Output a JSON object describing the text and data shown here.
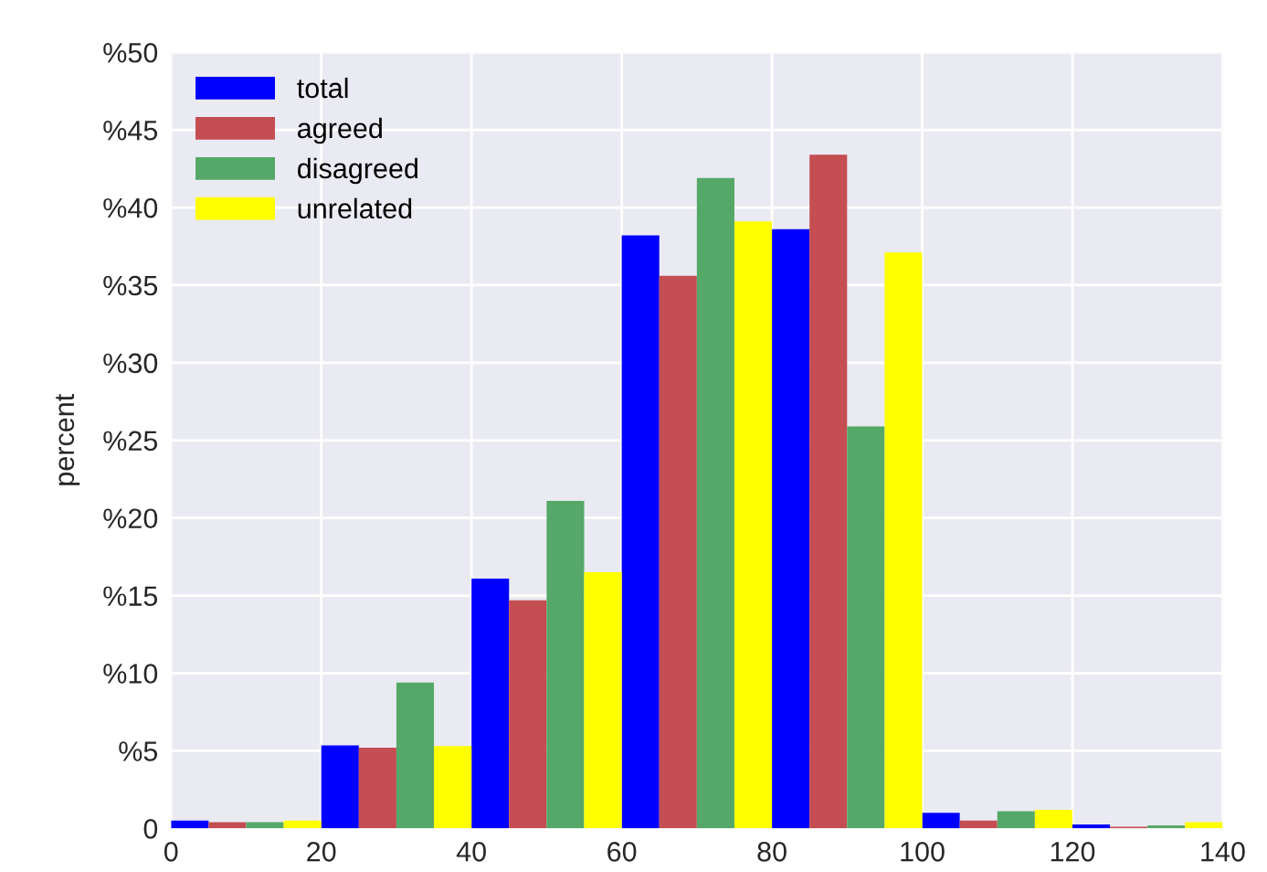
{
  "chart_data": {
    "type": "histogram",
    "ylabel": "percent",
    "bins": [
      0,
      20,
      40,
      60,
      80,
      100,
      120,
      140
    ],
    "series": [
      {
        "name": "total",
        "color": "#0000ff",
        "values": [
          0.5,
          5.35,
          16.1,
          38.2,
          38.6,
          1.0,
          0.25
        ]
      },
      {
        "name": "agreed",
        "color": "#c44e52",
        "values": [
          0.4,
          5.2,
          14.7,
          35.6,
          43.4,
          0.5,
          0.1
        ]
      },
      {
        "name": "disagreed",
        "color": "#55a868",
        "values": [
          0.4,
          9.4,
          21.1,
          41.9,
          25.9,
          1.1,
          0.2
        ]
      },
      {
        "name": "unrelated",
        "color": "#ffff00",
        "values": [
          0.5,
          5.3,
          16.5,
          39.1,
          37.1,
          1.2,
          0.4
        ]
      }
    ],
    "xlim": [
      0,
      140
    ],
    "xticks": [
      0,
      20,
      40,
      60,
      80,
      100,
      120,
      140
    ],
    "ylim": [
      0,
      50
    ],
    "yticks": [
      {
        "value": 0,
        "label": "0"
      },
      {
        "value": 5,
        "label": "%5"
      },
      {
        "value": 10,
        "label": "%10"
      },
      {
        "value": 15,
        "label": "%15"
      },
      {
        "value": 20,
        "label": "%20"
      },
      {
        "value": 25,
        "label": "%25"
      },
      {
        "value": 30,
        "label": "%30"
      },
      {
        "value": 35,
        "label": "%35"
      },
      {
        "value": 40,
        "label": "%40"
      },
      {
        "value": 45,
        "label": "%45"
      },
      {
        "value": 50,
        "label": "%50"
      }
    ],
    "grid": true,
    "legend": "top left"
  }
}
